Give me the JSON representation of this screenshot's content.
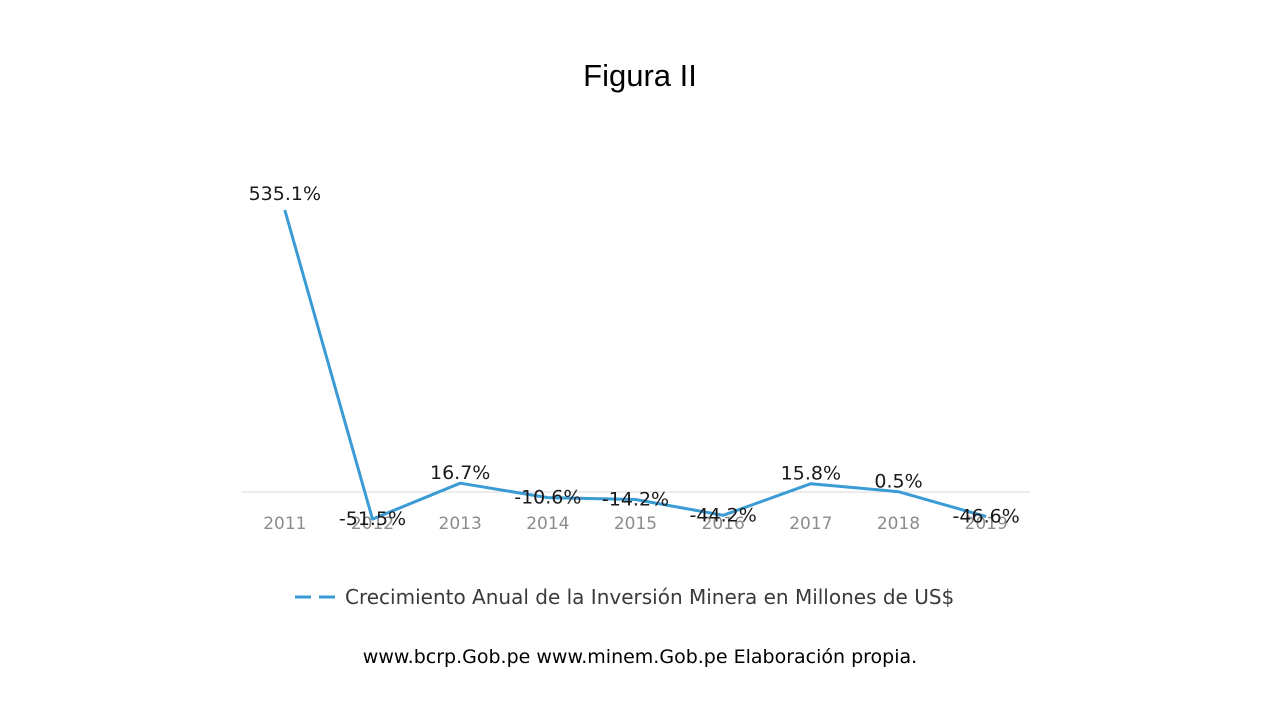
{
  "slide": {
    "title": "Figura II",
    "source_note": "www.bcrp.Gob.pe www.minem.Gob.pe Elaboración propia."
  },
  "colors": {
    "series_line": "#3a9bd5",
    "axis_line": "#d9d9d9",
    "tick_text": "#8c8c8c",
    "label_text": "#1a1a1a"
  },
  "chart_data": {
    "type": "line",
    "title": "",
    "xlabel": "",
    "ylabel": "",
    "x": [
      "2011",
      "2012",
      "2013",
      "2014",
      "2015",
      "2016",
      "2017",
      "2018",
      "2019"
    ],
    "series": [
      {
        "name": "Crecimiento Anual de la Inversión Minera en Millones de US$",
        "values": [
          535.1,
          -51.5,
          16.7,
          -10.6,
          -14.2,
          -44.2,
          15.8,
          0.5,
          -46.6
        ],
        "labels": [
          "535.1%",
          "-51.5%",
          "16.7%",
          "-10.6%",
          "-14.2%",
          "-44.2%",
          "15.8%",
          "0.5%",
          "-46.6%"
        ]
      }
    ],
    "ylim": [
      -60,
      535.1
    ],
    "y_axis_visible": false,
    "grid": false,
    "legend_position": "bottom"
  }
}
